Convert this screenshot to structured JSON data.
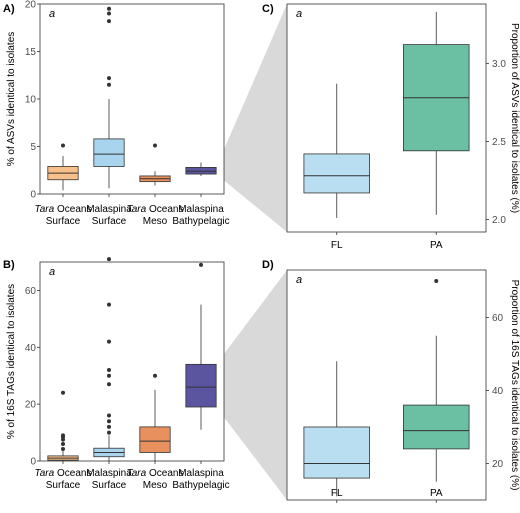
{
  "zoom_fill": "#d9d9d9",
  "chart_data": [
    {
      "panel": "A)",
      "type": "box",
      "annotation": "a",
      "ylabel": "% of ASVs identical to isolates",
      "ylim": [
        0,
        20
      ],
      "yticks": [
        0,
        5,
        10,
        15,
        20
      ],
      "categories": [
        {
          "pre": "Tara",
          "line1": " Oceans",
          "line2": "Surface"
        },
        {
          "pre": "",
          "line1": "Malaspina",
          "line2": "Surface"
        },
        {
          "pre": "Tara",
          "line1": " Oceans",
          "line2": "Meso"
        },
        {
          "pre": "",
          "line1": "Malaspina",
          "line2": "Bathypelagic"
        }
      ],
      "boxes": [
        {
          "q1": 1.5,
          "median": 2.2,
          "q3": 2.9,
          "whislo": 0.4,
          "whishi": 4.0,
          "fliers": [
            5.1
          ],
          "color": "#f7c08a"
        },
        {
          "q1": 2.9,
          "median": 4.2,
          "q3": 5.8,
          "whislo": 0.6,
          "whishi": 10.0,
          "fliers": [
            11.5,
            12.2,
            18.2,
            19.0,
            19.5
          ],
          "color": "#a9d4ee"
        },
        {
          "q1": 1.3,
          "median": 1.6,
          "q3": 1.9,
          "whislo": 0.9,
          "whishi": 2.4,
          "fliers": [
            5.1
          ],
          "color": "#e8915e"
        },
        {
          "q1": 2.1,
          "median": 2.4,
          "q3": 2.8,
          "whislo": 1.9,
          "whishi": 3.3,
          "fliers": [],
          "color": "#5b55a0"
        }
      ]
    },
    {
      "panel": "B)",
      "type": "box",
      "annotation": "a",
      "ylabel": "% of 16S TAGs identical to isolates",
      "ylim": [
        0,
        70
      ],
      "yticks": [
        0,
        20,
        40,
        60
      ],
      "categories": [
        {
          "pre": "Tara",
          "line1": " Oceans",
          "line2": "Surface"
        },
        {
          "pre": "",
          "line1": "Malaspina",
          "line2": "Surface"
        },
        {
          "pre": "Tara",
          "line1": " Oceans",
          "line2": "Meso"
        },
        {
          "pre": "",
          "line1": "Malaspina",
          "line2": "Bathypelagic"
        }
      ],
      "boxes": [
        {
          "q1": 0.3,
          "median": 1.0,
          "q3": 1.8,
          "whislo": 0.0,
          "whishi": 3.5,
          "fliers": [
            4.2,
            6.0,
            7.5,
            8.5,
            9.0,
            24.0
          ],
          "color": "#f7c08a"
        },
        {
          "q1": 1.5,
          "median": 3.0,
          "q3": 4.5,
          "whislo": 0.0,
          "whishi": 9.0,
          "fliers": [
            10,
            12,
            14,
            16,
            27,
            30,
            32,
            42,
            55,
            71
          ],
          "color": "#a9d4ee"
        },
        {
          "q1": 3.0,
          "median": 7.0,
          "q3": 12.0,
          "whislo": 0.0,
          "whishi": 25.0,
          "fliers": [
            30.0
          ],
          "color": "#e8915e"
        },
        {
          "q1": 19.0,
          "median": 26.0,
          "q3": 34.0,
          "whislo": 11.0,
          "whishi": 55.0,
          "fliers": [
            69.0
          ],
          "color": "#5b55a0"
        }
      ]
    },
    {
      "panel": "C)",
      "type": "box",
      "annotation": "a",
      "ylabel": "Proportion of ASVs identical to isolates (%)",
      "ylim": [
        1.92,
        3.38
      ],
      "yticks": [
        2.0,
        2.5,
        3.0
      ],
      "ytick_labels": [
        "2.0",
        "2.5",
        "3.0"
      ],
      "categories": [
        "FL",
        "PA"
      ],
      "boxes": [
        {
          "q1": 2.17,
          "median": 2.28,
          "q3": 2.42,
          "whislo": 2.01,
          "whishi": 2.87,
          "fliers": [],
          "color": "#b9def2"
        },
        {
          "q1": 2.44,
          "median": 2.78,
          "q3": 3.12,
          "whislo": 2.03,
          "whishi": 3.33,
          "fliers": [],
          "color": "#6bbfa2"
        }
      ]
    },
    {
      "panel": "D)",
      "type": "box",
      "annotation": "a",
      "ylabel": "Proportion of 16S TAGs identical to isolates (%)",
      "ylim": [
        10,
        73
      ],
      "yticks": [
        20,
        40,
        60
      ],
      "categories": [
        "FL",
        "PA"
      ],
      "boxes": [
        {
          "q1": 16.0,
          "median": 20.0,
          "q3": 30.0,
          "whislo": 11.0,
          "whishi": 48.0,
          "fliers": [],
          "color": "#b9def2"
        },
        {
          "q1": 24.0,
          "median": 29.0,
          "q3": 36.0,
          "whislo": 15.0,
          "whishi": 55.0,
          "fliers": [
            70.0
          ],
          "color": "#6bbfa2"
        }
      ]
    }
  ]
}
